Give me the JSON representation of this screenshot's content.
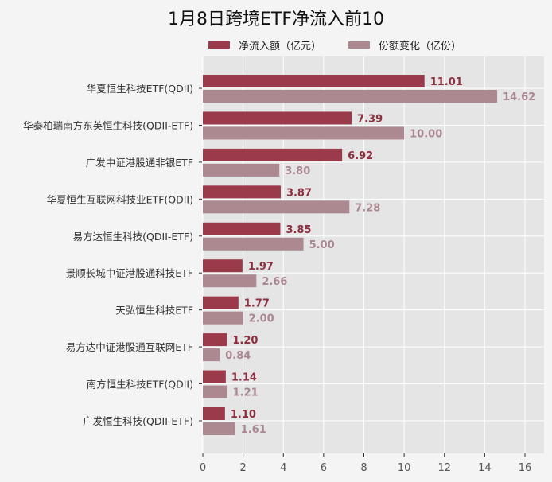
{
  "chart_data": {
    "type": "bar",
    "orientation": "horizontal",
    "title": "1月8日跨境ETF净流入前10",
    "categories": [
      "华夏恒生科技ETF(QDII)",
      "华泰柏瑞南方东英恒生科技(QDII-ETF)",
      "广发中证港股通非银ETF",
      "华夏恒生互联网科技业ETF(QDII)",
      "易方达恒生科技(QDII-ETF)",
      "景顺长城中证港股通科技ETF",
      "天弘恒生科技ETF",
      "易方达中证港股通互联网ETF",
      "南方恒生科技ETF(QDII)",
      "广发恒生科技(QDII-ETF)"
    ],
    "series": [
      {
        "name": "净流入额（亿元）",
        "color": "#9a3a4b",
        "values": [
          11.01,
          7.39,
          6.92,
          3.87,
          3.85,
          1.97,
          1.77,
          1.2,
          1.14,
          1.1
        ]
      },
      {
        "name": "份额变化（亿份）",
        "color": "#ac8891",
        "values": [
          14.62,
          10.0,
          3.8,
          7.28,
          5.0,
          2.66,
          2.0,
          0.84,
          1.21,
          1.61
        ]
      }
    ],
    "xlim": [
      0,
      17
    ],
    "xticks": [
      0,
      2,
      4,
      6,
      8,
      10,
      12,
      14,
      16
    ],
    "legend": "top",
    "grid": true
  }
}
